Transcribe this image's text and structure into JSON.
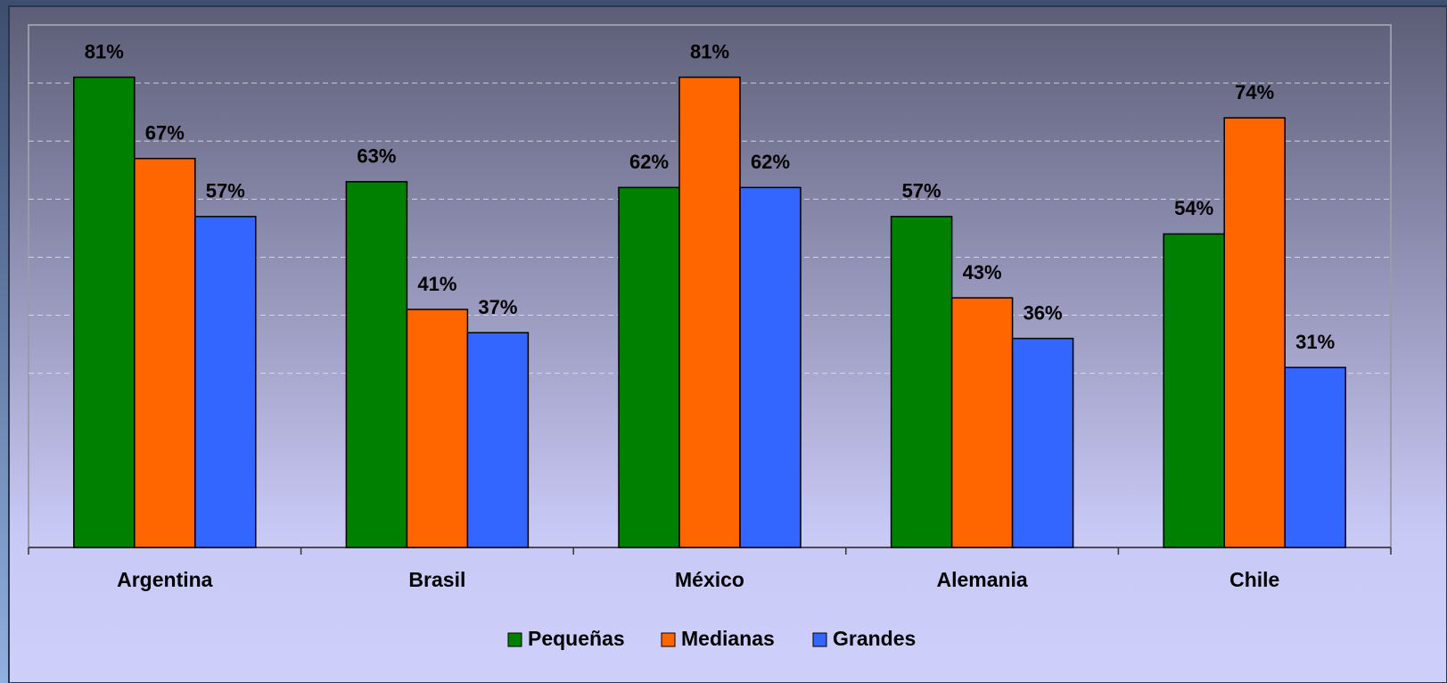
{
  "chart_data": {
    "type": "bar",
    "categories": [
      "Argentina",
      "Brasil",
      "México",
      "Alemania",
      "Chile"
    ],
    "series": [
      {
        "name": "Pequeñas",
        "color": "#008000",
        "values": [
          81,
          63,
          62,
          57,
          54
        ],
        "value_labels": [
          "81%",
          "63%",
          "62%",
          "57%",
          "54%"
        ]
      },
      {
        "name": "Medianas",
        "color": "#ff6600",
        "values": [
          67,
          41,
          81,
          43,
          74
        ],
        "value_labels": [
          "67%",
          "41%",
          "81%",
          "43%",
          "74%"
        ]
      },
      {
        "name": "Grandes",
        "color": "#3366ff",
        "values": [
          57,
          37,
          62,
          36,
          31
        ],
        "value_labels": [
          "57%",
          "37%",
          "62%",
          "36%",
          "31%"
        ]
      }
    ],
    "ylim": [
      0,
      90
    ],
    "yticks": [
      30,
      40,
      50,
      60,
      70,
      80
    ],
    "grid": true,
    "legend": "bottom"
  }
}
